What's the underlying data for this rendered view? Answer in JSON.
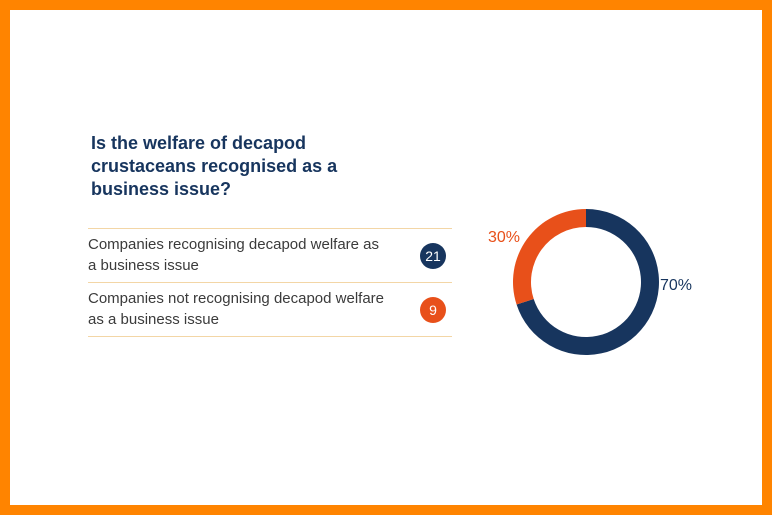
{
  "title": "Is the welfare of decapod crustaceans recognised as a business issue?",
  "rows": [
    {
      "label": "Companies recognising decapod welfare as a business issue",
      "value": "21"
    },
    {
      "label": "Companies not recognising decapod welfare as a business issue",
      "value": "9"
    }
  ],
  "colors": {
    "recognising": "#17355e",
    "not_recognising": "#e8501a",
    "frame": "#ff8400"
  },
  "chart_data": {
    "type": "pie",
    "style": "donut",
    "categories": [
      "Companies recognising decapod welfare as a business issue",
      "Companies not recognising decapod welfare as a business issue"
    ],
    "values": [
      70,
      30
    ],
    "labels": [
      "70%",
      "30%"
    ],
    "colors": [
      "#17355e",
      "#e8501a"
    ]
  }
}
